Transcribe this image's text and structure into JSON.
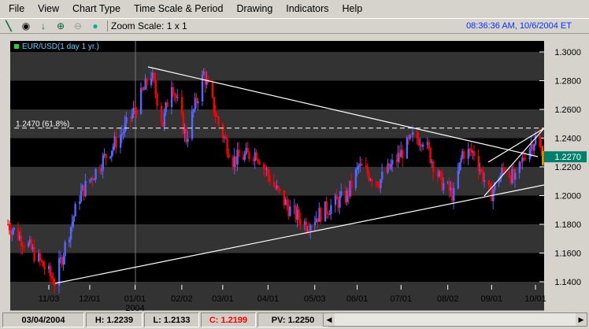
{
  "menu": [
    "File",
    "View",
    "Chart Type",
    "Time Scale & Period",
    "Drawing",
    "Indicators",
    "Help"
  ],
  "toolbar": {
    "icons": [
      "draw-line-icon",
      "crosshair-icon",
      "arrow-down-icon",
      "zoom-in-icon",
      "zoom-out-icon",
      "color-icon"
    ],
    "zoom_label": "Zoom Scale: 1 x 1",
    "clock": "08:36:36 AM, 10/6/2004 ET"
  },
  "chart_data": {
    "type": "candlestick",
    "title": "EUR/USD(1 day  1 yr.)",
    "fib_label": "1.2470 (61.8%)",
    "current_price": "1.2270",
    "ylim": [
      1.13,
      1.31
    ],
    "y_ticks": [
      "1.3000",
      "1.2800",
      "1.2600",
      "1.2400",
      "1.2200",
      "1.2000",
      "1.1800",
      "1.1600",
      "1.1400"
    ],
    "x_ticks": [
      {
        "date": "2003-11-03",
        "label": "11/03"
      },
      {
        "date": "2003-12-01",
        "label": "12/01"
      },
      {
        "date": "2004-01-01",
        "label": "01/01",
        "sub": "2004"
      },
      {
        "date": "2004-02-02",
        "label": "02/02"
      },
      {
        "date": "2004-03-01",
        "label": "03/01"
      },
      {
        "date": "2004-04-01",
        "label": "04/01"
      },
      {
        "date": "2004-05-03",
        "label": "05/03"
      },
      {
        "date": "2004-06-01",
        "label": "06/01"
      },
      {
        "date": "2004-07-01",
        "label": "07/01"
      },
      {
        "date": "2004-08-02",
        "label": "08/02"
      },
      {
        "date": "2004-09-01",
        "label": "09/01"
      },
      {
        "date": "2004-10-01",
        "label": "10/01"
      }
    ],
    "closes": [
      [
        "2003-10-06",
        1.18
      ],
      [
        "2003-10-20",
        1.165
      ],
      [
        "2003-11-07",
        1.14
      ],
      [
        "2003-11-24",
        1.2
      ],
      [
        "2003-12-10",
        1.225
      ],
      [
        "2003-12-24",
        1.245
      ],
      [
        "2004-01-01",
        1.26
      ],
      [
        "2004-01-12",
        1.285
      ],
      [
        "2004-01-20",
        1.25
      ],
      [
        "2004-01-26",
        1.28
      ],
      [
        "2004-02-05",
        1.24
      ],
      [
        "2004-02-17",
        1.285
      ],
      [
        "2004-02-27",
        1.25
      ],
      [
        "2004-03-08",
        1.225
      ],
      [
        "2004-03-24",
        1.23
      ],
      [
        "2004-04-06",
        1.205
      ],
      [
        "2004-04-16",
        1.19
      ],
      [
        "2004-04-27",
        1.18
      ],
      [
        "2004-05-10",
        1.19
      ],
      [
        "2004-05-25",
        1.2
      ],
      [
        "2004-06-02",
        1.22
      ],
      [
        "2004-06-16",
        1.21
      ],
      [
        "2004-06-24",
        1.22
      ],
      [
        "2004-07-09",
        1.24
      ],
      [
        "2004-07-16",
        1.24
      ],
      [
        "2004-07-28",
        1.21
      ],
      [
        "2004-08-06",
        1.2
      ],
      [
        "2004-08-12",
        1.23
      ],
      [
        "2004-08-20",
        1.23
      ],
      [
        "2004-08-31",
        1.2
      ],
      [
        "2004-09-10",
        1.22
      ],
      [
        "2004-09-17",
        1.21
      ],
      [
        "2004-09-24",
        1.23
      ],
      [
        "2004-10-01",
        1.24
      ],
      [
        "2004-10-06",
        1.227
      ]
    ],
    "colors": {
      "up": "#5566ff",
      "down": "#ff0000",
      "band_light": "#333333",
      "band_dark": "#000000",
      "current_bg": "#00806a",
      "last_candle": "#ffaa00"
    }
  },
  "status": {
    "date": "03/04/2004",
    "high": "H: 1.2239",
    "low": "L: 1.2133",
    "close": "C: 1.2199",
    "pv": "PV: 1.2250"
  }
}
